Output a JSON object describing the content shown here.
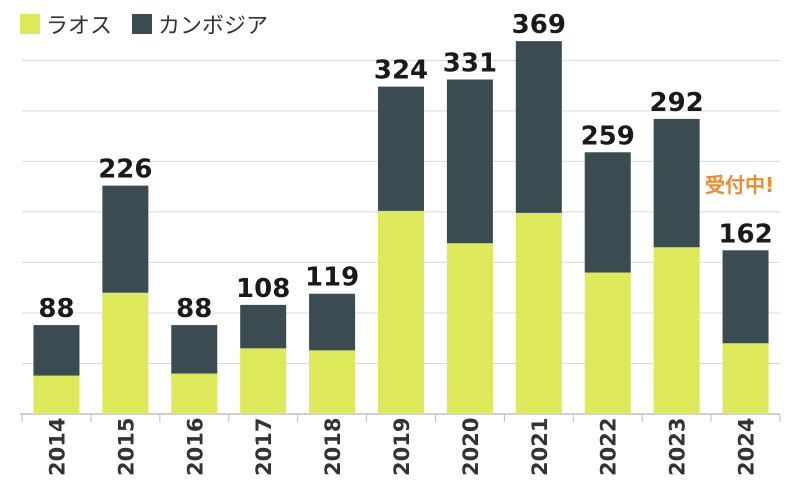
{
  "chart_data": {
    "type": "bar",
    "stacked": true,
    "categories": [
      "2014",
      "2015",
      "2016",
      "2017",
      "2018",
      "2019",
      "2020",
      "2021",
      "2022",
      "2023",
      "2024"
    ],
    "series": [
      {
        "name": "ラオス",
        "color": "#dde85a",
        "values": [
          38,
          120,
          40,
          65,
          63,
          201,
          169,
          199,
          140,
          165,
          70
        ]
      },
      {
        "name": "カンボジア",
        "color": "#3b4b52",
        "values": [
          50,
          106,
          48,
          43,
          56,
          123,
          162,
          170,
          119,
          127,
          92
        ]
      }
    ],
    "totals": [
      "88",
      "226",
      "88",
      "108",
      "119",
      "324",
      "331",
      "369",
      "259",
      "292",
      "162"
    ],
    "annotation": {
      "text": "受付中!",
      "category": "2024",
      "color": "#f08a2c"
    },
    "ylim": [
      0,
      380
    ],
    "grid": true,
    "legend": "top-left"
  }
}
